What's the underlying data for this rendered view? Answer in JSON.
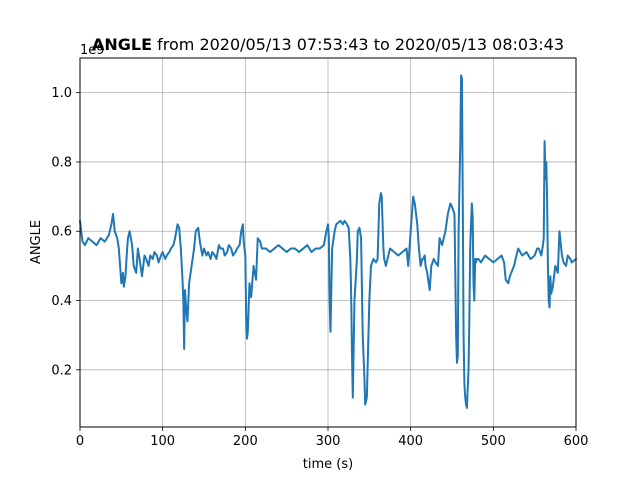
{
  "chart_data": {
    "type": "line",
    "title_bold": "ANGLE",
    "title_rest": " from 2020/05/13 07:53:43 to 2020/05/13 08:03:43",
    "xlabel": "time (s)",
    "ylabel": "ANGLE",
    "y_multiplier": "1e9",
    "xlim": [
      0,
      600
    ],
    "ylim": [
      0.035,
      1.1
    ],
    "grid": true,
    "line_color": "#1f77b4",
    "x_ticks": [
      0,
      100,
      200,
      300,
      400,
      500,
      600
    ],
    "x_tick_labels": [
      "0",
      "100",
      "200",
      "300",
      "400",
      "500",
      "600"
    ],
    "y_ticks": [
      0.2,
      0.4,
      0.6,
      0.8,
      1.0
    ],
    "y_tick_labels": [
      "0.2",
      "0.4",
      "0.6",
      "0.8",
      "1.0"
    ],
    "series": [
      {
        "x": [
          0,
          3,
          6,
          10,
          15,
          20,
          25,
          30,
          35,
          38,
          40,
          42,
          45,
          47,
          50,
          52,
          53,
          55,
          57,
          58,
          60,
          63,
          65,
          68,
          70,
          72,
          75,
          78,
          80,
          83,
          85,
          88,
          90,
          93,
          95,
          98,
          100,
          103,
          105,
          108,
          110,
          113,
          115,
          118,
          120,
          122,
          124,
          125,
          126,
          127,
          128,
          130,
          132,
          135,
          138,
          140,
          143,
          145,
          148,
          150,
          153,
          155,
          158,
          160,
          163,
          165,
          168,
          170,
          173,
          175,
          178,
          180,
          183,
          185,
          188,
          190,
          193,
          195,
          197,
          198,
          199,
          200,
          201,
          202,
          203,
          205,
          207,
          210,
          213,
          215,
          218,
          220,
          225,
          230,
          235,
          240,
          245,
          250,
          255,
          260,
          265,
          270,
          275,
          280,
          285,
          290,
          295,
          298,
          300,
          301,
          302,
          303,
          305,
          308,
          310,
          315,
          318,
          320,
          323,
          325,
          327,
          328,
          329,
          330,
          332,
          335,
          336,
          338,
          340,
          342,
          344,
          345,
          347,
          350,
          352,
          355,
          358,
          360,
          362,
          364,
          365,
          367,
          368,
          370,
          375,
          380,
          385,
          390,
          395,
          397,
          398,
          400,
          403,
          405,
          408,
          410,
          412,
          414,
          415,
          417,
          418,
          420,
          423,
          425,
          428,
          430,
          433,
          435,
          438,
          440,
          442,
          445,
          448,
          450,
          453,
          455,
          456,
          457,
          458,
          460,
          461,
          462,
          463,
          464,
          465,
          466,
          467,
          468,
          470,
          471,
          472,
          473,
          474,
          475,
          476,
          477,
          478,
          479,
          480,
          482,
          485,
          490,
          495,
          500,
          505,
          510,
          513,
          515,
          518,
          520,
          525,
          530,
          535,
          540,
          545,
          550,
          553,
          555,
          558,
          560,
          561,
          562,
          563,
          564,
          565,
          566,
          567,
          568,
          569,
          570,
          572,
          575,
          578,
          580,
          583,
          585,
          588,
          590,
          593,
          595,
          600
        ],
        "y": [
          0.63,
          0.57,
          0.56,
          0.58,
          0.57,
          0.56,
          0.58,
          0.57,
          0.59,
          0.62,
          0.65,
          0.6,
          0.58,
          0.55,
          0.45,
          0.48,
          0.44,
          0.47,
          0.55,
          0.58,
          0.6,
          0.56,
          0.5,
          0.48,
          0.55,
          0.52,
          0.47,
          0.53,
          0.52,
          0.5,
          0.53,
          0.52,
          0.54,
          0.53,
          0.51,
          0.53,
          0.54,
          0.52,
          0.53,
          0.54,
          0.55,
          0.56,
          0.58,
          0.62,
          0.61,
          0.55,
          0.46,
          0.4,
          0.26,
          0.43,
          0.39,
          0.34,
          0.45,
          0.5,
          0.55,
          0.6,
          0.61,
          0.57,
          0.53,
          0.55,
          0.53,
          0.54,
          0.52,
          0.54,
          0.53,
          0.52,
          0.56,
          0.55,
          0.55,
          0.53,
          0.54,
          0.56,
          0.55,
          0.53,
          0.54,
          0.55,
          0.56,
          0.6,
          0.62,
          0.57,
          0.55,
          0.53,
          0.36,
          0.29,
          0.31,
          0.45,
          0.41,
          0.5,
          0.46,
          0.58,
          0.57,
          0.55,
          0.55,
          0.54,
          0.55,
          0.56,
          0.55,
          0.54,
          0.55,
          0.55,
          0.54,
          0.55,
          0.56,
          0.54,
          0.55,
          0.55,
          0.56,
          0.6,
          0.62,
          0.58,
          0.4,
          0.31,
          0.55,
          0.6,
          0.62,
          0.63,
          0.62,
          0.63,
          0.62,
          0.61,
          0.52,
          0.42,
          0.25,
          0.12,
          0.4,
          0.52,
          0.6,
          0.61,
          0.58,
          0.3,
          0.18,
          0.1,
          0.12,
          0.4,
          0.5,
          0.52,
          0.51,
          0.52,
          0.68,
          0.71,
          0.7,
          0.55,
          0.52,
          0.5,
          0.55,
          0.54,
          0.53,
          0.54,
          0.55,
          0.5,
          0.53,
          0.6,
          0.7,
          0.68,
          0.62,
          0.55,
          0.5,
          0.52,
          0.52,
          0.53,
          0.5,
          0.48,
          0.43,
          0.5,
          0.52,
          0.51,
          0.5,
          0.58,
          0.56,
          0.58,
          0.6,
          0.65,
          0.68,
          0.67,
          0.65,
          0.3,
          0.22,
          0.24,
          0.6,
          0.85,
          1.05,
          1.04,
          0.7,
          0.3,
          0.16,
          0.12,
          0.1,
          0.09,
          0.2,
          0.35,
          0.55,
          0.62,
          0.68,
          0.64,
          0.45,
          0.4,
          0.52,
          0.51,
          0.52,
          0.52,
          0.51,
          0.53,
          0.52,
          0.51,
          0.52,
          0.53,
          0.51,
          0.46,
          0.45,
          0.47,
          0.5,
          0.55,
          0.53,
          0.54,
          0.52,
          0.53,
          0.55,
          0.55,
          0.53,
          0.56,
          0.58,
          0.86,
          0.75,
          0.8,
          0.7,
          0.5,
          0.4,
          0.38,
          0.47,
          0.42,
          0.44,
          0.5,
          0.48,
          0.6,
          0.53,
          0.51,
          0.5,
          0.53,
          0.52,
          0.51,
          0.52
        ]
      }
    ]
  }
}
